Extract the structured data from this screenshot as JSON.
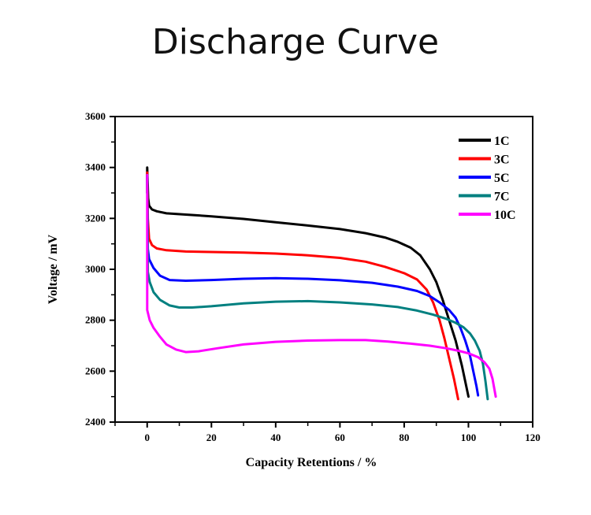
{
  "title": "Discharge Curve",
  "chart_data": {
    "type": "line",
    "title": "Discharge Curve",
    "xlabel": "Capacity Retentions / %",
    "ylabel": "Voltage / mV",
    "xlim": [
      -10,
      120
    ],
    "ylim": [
      2400,
      3600
    ],
    "xticks": [
      0,
      20,
      40,
      60,
      80,
      100,
      120
    ],
    "yticks": [
      2400,
      2600,
      2800,
      3000,
      3200,
      3400,
      3600
    ],
    "xticks_minor": [
      -10,
      10,
      30,
      50,
      70,
      90,
      110
    ],
    "yticks_minor": [
      2500,
      2700,
      2900,
      3100,
      3300,
      3500
    ],
    "grid": false,
    "legend_position": "top-right",
    "series": [
      {
        "name": "1C",
        "color": "#000000",
        "points": [
          [
            0,
            3300
          ],
          [
            0,
            3400
          ],
          [
            0.3,
            3280
          ],
          [
            0.6,
            3250
          ],
          [
            1.5,
            3235
          ],
          [
            3,
            3228
          ],
          [
            6,
            3220
          ],
          [
            12,
            3215
          ],
          [
            20,
            3208
          ],
          [
            30,
            3198
          ],
          [
            40,
            3185
          ],
          [
            50,
            3172
          ],
          [
            60,
            3158
          ],
          [
            68,
            3142
          ],
          [
            74,
            3125
          ],
          [
            78,
            3108
          ],
          [
            82,
            3085
          ],
          [
            85,
            3055
          ],
          [
            88,
            3000
          ],
          [
            90,
            2950
          ],
          [
            92,
            2880
          ],
          [
            94,
            2800
          ],
          [
            96,
            2720
          ],
          [
            98,
            2620
          ],
          [
            100,
            2500
          ]
        ]
      },
      {
        "name": "3C",
        "color": "#ff0000",
        "points": [
          [
            0,
            3380
          ],
          [
            0.2,
            3200
          ],
          [
            0.6,
            3120
          ],
          [
            1.5,
            3095
          ],
          [
            3,
            3082
          ],
          [
            6,
            3075
          ],
          [
            12,
            3070
          ],
          [
            20,
            3068
          ],
          [
            30,
            3066
          ],
          [
            40,
            3062
          ],
          [
            50,
            3055
          ],
          [
            60,
            3045
          ],
          [
            68,
            3030
          ],
          [
            74,
            3010
          ],
          [
            80,
            2985
          ],
          [
            84,
            2960
          ],
          [
            87,
            2920
          ],
          [
            89,
            2870
          ],
          [
            91,
            2800
          ],
          [
            92.5,
            2730
          ],
          [
            94,
            2650
          ],
          [
            95.5,
            2570
          ],
          [
            96.8,
            2490
          ]
        ]
      },
      {
        "name": "5C",
        "color": "#0000ff",
        "points": [
          [
            0,
            3370
          ],
          [
            0.2,
            3080
          ],
          [
            0.6,
            3040
          ],
          [
            2,
            3005
          ],
          [
            4,
            2975
          ],
          [
            7,
            2958
          ],
          [
            12,
            2955
          ],
          [
            20,
            2958
          ],
          [
            30,
            2963
          ],
          [
            40,
            2965
          ],
          [
            50,
            2963
          ],
          [
            60,
            2957
          ],
          [
            70,
            2947
          ],
          [
            78,
            2932
          ],
          [
            84,
            2915
          ],
          [
            88,
            2895
          ],
          [
            91,
            2870
          ],
          [
            94,
            2840
          ],
          [
            96,
            2810
          ],
          [
            97.5,
            2770
          ],
          [
            99,
            2720
          ],
          [
            100.5,
            2660
          ],
          [
            101.5,
            2600
          ],
          [
            102.5,
            2540
          ],
          [
            103,
            2505
          ]
        ]
      },
      {
        "name": "7C",
        "color": "#008080",
        "points": [
          [
            0,
            3370
          ],
          [
            0.2,
            2990
          ],
          [
            0.8,
            2950
          ],
          [
            2,
            2910
          ],
          [
            4,
            2880
          ],
          [
            7,
            2858
          ],
          [
            10,
            2850
          ],
          [
            14,
            2850
          ],
          [
            20,
            2855
          ],
          [
            30,
            2866
          ],
          [
            40,
            2873
          ],
          [
            50,
            2875
          ],
          [
            60,
            2870
          ],
          [
            70,
            2862
          ],
          [
            78,
            2852
          ],
          [
            84,
            2838
          ],
          [
            89,
            2822
          ],
          [
            93,
            2806
          ],
          [
            96,
            2790
          ],
          [
            98.5,
            2772
          ],
          [
            100.5,
            2748
          ],
          [
            102,
            2720
          ],
          [
            103.5,
            2680
          ],
          [
            104.5,
            2630
          ],
          [
            105.3,
            2560
          ],
          [
            106,
            2490
          ]
        ]
      },
      {
        "name": "10C",
        "color": "#ff00ff",
        "points": [
          [
            0,
            3370
          ],
          [
            0,
            2840
          ],
          [
            0.8,
            2800
          ],
          [
            2,
            2770
          ],
          [
            4,
            2735
          ],
          [
            6,
            2705
          ],
          [
            9,
            2685
          ],
          [
            12,
            2675
          ],
          [
            16,
            2678
          ],
          [
            22,
            2690
          ],
          [
            30,
            2705
          ],
          [
            40,
            2715
          ],
          [
            50,
            2720
          ],
          [
            60,
            2722
          ],
          [
            68,
            2722
          ],
          [
            75,
            2716
          ],
          [
            82,
            2708
          ],
          [
            88,
            2700
          ],
          [
            93,
            2690
          ],
          [
            97,
            2680
          ],
          [
            100,
            2670
          ],
          [
            103,
            2655
          ],
          [
            105,
            2635
          ],
          [
            106.5,
            2610
          ],
          [
            107.5,
            2570
          ],
          [
            108.5,
            2500
          ]
        ]
      }
    ]
  }
}
